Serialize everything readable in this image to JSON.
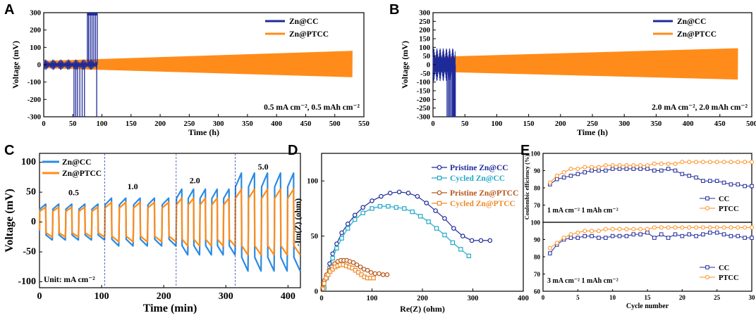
{
  "panels": {
    "A": "A",
    "B": "B",
    "C": "C",
    "D": "D",
    "E": "E"
  },
  "colors": {
    "zncc": "#1f2a9a",
    "znptcc": "#ff8c1a",
    "cc_light": "#2c8be0",
    "cycled_cc": "#22a9c7",
    "pristine_ptcc": "#b5561b",
    "cycled_ptcc": "#ef8a2a"
  },
  "chart_data": [
    {
      "id": "A",
      "type": "line",
      "title": "",
      "xlabel": "Time (h)",
      "ylabel": "Voltage (mV)",
      "xlim": [
        0,
        550
      ],
      "ylim": [
        -300,
        300
      ],
      "xticks": [
        "0",
        "50",
        "100",
        "150",
        "200",
        "250",
        "300",
        "350",
        "400",
        "450",
        "500",
        "550"
      ],
      "yticks": [
        "-300",
        "-200",
        "-100",
        "0",
        "100",
        "200",
        "300"
      ],
      "annotation": "0.5 mA cm⁻², 0.5 mAh cm⁻²",
      "series": [
        {
          "name": "Zn@CC",
          "failure_time_h": 92,
          "short_circuit_window_h": [
            55,
            92
          ],
          "amplitude_mV": 30
        },
        {
          "name": "Zn@PTCC",
          "end_time_h": 530,
          "amplitude_start_mV": 22,
          "amplitude_end_mV": 80
        }
      ]
    },
    {
      "id": "B",
      "type": "line",
      "title": "",
      "xlabel": "Time (h)",
      "ylabel": "Voltage (mV)",
      "xlim": [
        0,
        500
      ],
      "ylim": [
        -300,
        300
      ],
      "xticks": [
        "0",
        "50",
        "100",
        "150",
        "200",
        "250",
        "300",
        "350",
        "400",
        "450",
        "500"
      ],
      "yticks": [
        "-300",
        "-250",
        "-200",
        "-150",
        "-100",
        "-50",
        "0",
        "50",
        "100",
        "150",
        "200",
        "250",
        "300"
      ],
      "annotation": "2.0 mA cm⁻², 2.0 mAh cm⁻²",
      "series": [
        {
          "name": "Zn@CC",
          "failure_time_h": 35,
          "amplitude_mV": 95
        },
        {
          "name": "Zn@PTCC",
          "end_time_h": 478,
          "amplitude_start_mV": 45,
          "amplitude_end_mV": 95
        }
      ]
    },
    {
      "id": "C",
      "type": "line",
      "title": "",
      "xlabel": "Time (min)",
      "ylabel": "Voltage (mV)",
      "xlim": [
        0,
        420
      ],
      "ylim": [
        -110,
        115
      ],
      "xticks": [
        "0",
        "100",
        "200",
        "300",
        "400"
      ],
      "yticks": [
        "-100",
        "-50",
        "0",
        "50",
        "100"
      ],
      "unit_label": "Unit: mA cm⁻²",
      "rate_labels": [
        {
          "text": "0.5",
          "x": 55,
          "y": 45
        },
        {
          "text": "1.0",
          "x": 150,
          "y": 55
        },
        {
          "text": "2.0",
          "x": 250,
          "y": 65
        },
        {
          "text": "5.0",
          "x": 360,
          "y": 88
        }
      ],
      "rate_boundaries_min": [
        105,
        220,
        315
      ],
      "segments": [
        {
          "rate": "0.5",
          "start": 0,
          "end": 105,
          "cc_amp": 30,
          "ptcc_amp": 25
        },
        {
          "rate": "1.0",
          "start": 105,
          "end": 220,
          "cc_amp": 40,
          "ptcc_amp": 33
        },
        {
          "rate": "2.0",
          "start": 220,
          "end": 315,
          "cc_amp": 55,
          "ptcc_amp": 40
        },
        {
          "rate": "5.0",
          "start": 315,
          "end": 420,
          "cc_amp": 82,
          "ptcc_amp": 55
        }
      ],
      "series": [
        {
          "name": "Zn@CC"
        },
        {
          "name": "Zn@PTCC"
        }
      ]
    },
    {
      "id": "D",
      "type": "scatter",
      "title": "",
      "xlabel": "Re(Z) (ohm)",
      "ylabel": "-Im(Z) (ohm)",
      "xlim": [
        0,
        400
      ],
      "ylim": [
        0,
        125
      ],
      "xticks": [
        "0",
        "100",
        "200",
        "300",
        "400"
      ],
      "yticks": [
        "0",
        "50",
        "100"
      ],
      "series": [
        {
          "name": "Pristine Zn@CC",
          "marker": "circle",
          "x": [
            5,
            10,
            16,
            22,
            30,
            40,
            52,
            66,
            82,
            100,
            118,
            136,
            154,
            172,
            190,
            208,
            226,
            244,
            262,
            280,
            298,
            316,
            334
          ],
          "y": [
            3,
            14,
            25,
            34,
            43,
            53,
            61,
            69,
            76,
            82,
            86,
            89,
            90,
            89,
            86,
            80,
            73,
            66,
            57,
            50,
            46,
            46,
            46
          ]
        },
        {
          "name": "Cycled Zn@CC",
          "marker": "square",
          "x": [
            5,
            10,
            16,
            22,
            30,
            40,
            52,
            66,
            82,
            100,
            116,
            132,
            148,
            164,
            180,
            196,
            212,
            228,
            244,
            260,
            276,
            292
          ],
          "y": [
            3,
            12,
            21,
            30,
            39,
            48,
            57,
            65,
            71,
            75,
            77,
            77,
            76,
            75,
            72,
            68,
            63,
            57,
            51,
            44,
            38,
            32
          ]
        },
        {
          "name": "Pristine Zn@PTCC",
          "marker": "circle",
          "x": [
            2,
            6,
            10,
            15,
            20,
            26,
            32,
            38,
            44,
            50,
            56,
            63,
            70,
            77,
            84,
            91,
            98,
            106,
            114,
            122,
            130
          ],
          "y": [
            3,
            10,
            15,
            19,
            22,
            25,
            27,
            28,
            28,
            28,
            27,
            26,
            24,
            22,
            20,
            19,
            17,
            16,
            16,
            15,
            15
          ]
        },
        {
          "name": "Cycled Zn@PTCC",
          "marker": "square",
          "x": [
            2,
            5,
            9,
            13,
            17,
            22,
            27,
            32,
            37,
            43,
            49,
            55,
            61,
            67,
            73,
            79,
            85,
            91,
            97,
            103
          ],
          "y": [
            2,
            7,
            12,
            15,
            18,
            20,
            22,
            23,
            24,
            24,
            23,
            22,
            21,
            19,
            17,
            15,
            13,
            12,
            12,
            12
          ]
        }
      ]
    },
    {
      "id": "E",
      "type": "line",
      "title": "",
      "xlabel": "Cycle number",
      "ylabel": "Coulombic efficiency (%)",
      "xticks": [
        "0",
        "5",
        "10",
        "15",
        "20",
        "25",
        "30"
      ],
      "yticks_top": [
        "60",
        "70",
        "80",
        "90",
        "100"
      ],
      "yticks_bottom": [
        "60",
        "70",
        "80",
        "90",
        "100"
      ],
      "ylim": [
        60,
        100
      ],
      "xlim": [
        0,
        30
      ],
      "subplots": [
        {
          "condition": "1 mA cm⁻² 1 mAh cm⁻²",
          "x": [
            1,
            2,
            3,
            4,
            5,
            6,
            7,
            8,
            9,
            10,
            11,
            12,
            13,
            14,
            15,
            16,
            17,
            18,
            19,
            20,
            21,
            22,
            23,
            24,
            25,
            26,
            27,
            28,
            29,
            30
          ],
          "series": [
            {
              "name": "CC",
              "values": [
                82,
                85,
                86,
                87,
                88,
                89,
                90,
                90,
                90,
                91,
                91,
                91,
                91,
                91,
                91,
                90,
                90,
                91,
                90,
                88,
                87,
                86,
                84,
                84,
                84,
                83,
                82,
                82,
                81,
                81
              ]
            },
            {
              "name": "PTCC",
              "values": [
                83,
                87,
                89,
                91,
                91,
                92,
                92,
                92,
                93,
                93,
                93,
                93,
                93,
                93,
                93,
                94,
                94,
                94,
                94,
                95,
                95,
                95,
                95,
                95,
                95,
                95,
                95,
                95,
                95,
                95
              ]
            }
          ]
        },
        {
          "condition": "3 mA cm⁻² 1 mAh cm⁻²",
          "x": [
            1,
            2,
            3,
            4,
            5,
            6,
            7,
            8,
            9,
            10,
            11,
            12,
            13,
            14,
            15,
            16,
            17,
            18,
            19,
            20,
            21,
            22,
            23,
            24,
            25,
            26,
            27,
            28,
            29,
            30
          ],
          "series": [
            {
              "name": "CC",
              "values": [
                82,
                87,
                90,
                91,
                91,
                92,
                92,
                91,
                91,
                92,
                92,
                92,
                93,
                93,
                94,
                91,
                93,
                91,
                93,
                92,
                93,
                92,
                93,
                94,
                94,
                93,
                92,
                92,
                91,
                91
              ]
            },
            {
              "name": "PTCC",
              "values": [
                85,
                88,
                91,
                93,
                94,
                95,
                95,
                95,
                96,
                96,
                96,
                96,
                96,
                96,
                96,
                97,
                97,
                97,
                97,
                97,
                97,
                97,
                97,
                97,
                97,
                97,
                97,
                97,
                97,
                97
              ]
            }
          ]
        }
      ]
    }
  ]
}
